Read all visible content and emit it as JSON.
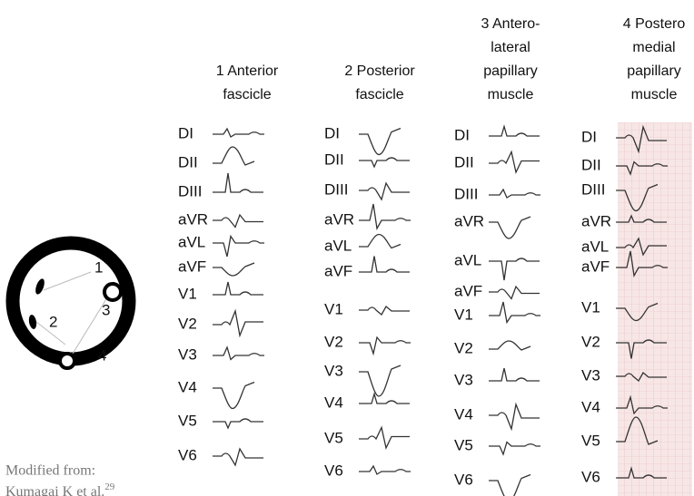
{
  "columns": [
    {
      "title": [
        "1 Anterior",
        "fascicle"
      ],
      "leads": [
        "DI",
        "DII",
        "DIII",
        "aVR",
        "aVL",
        "aVF",
        "V1",
        "V2",
        "V3",
        "V4",
        "V5",
        "V6"
      ]
    },
    {
      "title": [
        "2 Posterior",
        "fascicle"
      ],
      "leads": [
        "DI",
        "DII",
        "DIII",
        "aVR",
        "aVL",
        "aVF",
        "V1",
        "V2",
        "V3",
        "V4",
        "V5",
        "V6"
      ]
    },
    {
      "title": [
        "3 Antero-",
        "lateral",
        "papillary",
        "muscle"
      ],
      "leads": [
        "DI",
        "DII",
        "DIII",
        "aVR",
        "aVL",
        "aVF",
        "V1",
        "V2",
        "V3",
        "V4",
        "V5",
        "V6"
      ]
    },
    {
      "title": [
        "4 Postero",
        "medial",
        "papillary",
        "muscle"
      ],
      "leads": [
        "DI",
        "DII",
        "DIII",
        "aVR",
        "aVL",
        "aVF",
        "V1",
        "V2",
        "V3",
        "V4",
        "V5",
        "V6"
      ]
    }
  ],
  "diagram": {
    "labels": [
      "1",
      "2",
      "3",
      "4"
    ]
  },
  "caption": {
    "line1": "Modified from:",
    "line2": "Kumagai K et al.",
    "reference": "29"
  }
}
